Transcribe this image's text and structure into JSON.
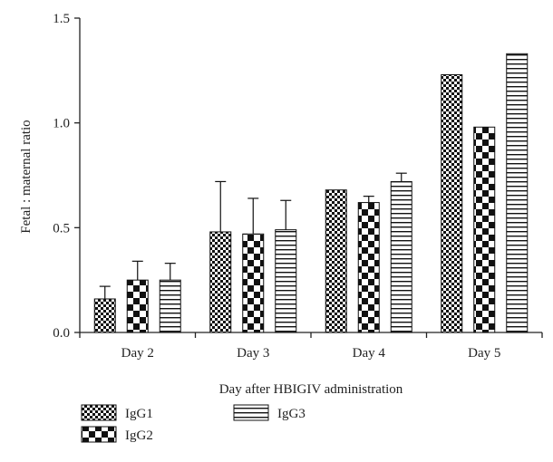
{
  "chart_data": {
    "type": "bar",
    "xlabel": "Day after HBIGIV administration",
    "ylabel": "Fetal : maternal ratio",
    "ylim": [
      0,
      1.5
    ],
    "yticks": [
      "0.0",
      "0.5",
      "1.0",
      "1.5"
    ],
    "categories": [
      "Day 2",
      "Day 3",
      "Day 4",
      "Day 5"
    ],
    "error_bars": "upper",
    "series": [
      {
        "name": "IgG1",
        "pattern": "fine-checker",
        "values": [
          0.16,
          0.48,
          0.68,
          1.23
        ],
        "errors": [
          0.06,
          0.24,
          0.0,
          0.0
        ]
      },
      {
        "name": "IgG2",
        "pattern": "coarse-checker",
        "values": [
          0.25,
          0.47,
          0.62,
          0.98
        ],
        "errors": [
          0.09,
          0.17,
          0.03,
          0.0
        ]
      },
      {
        "name": "IgG3",
        "pattern": "horizontal-lines",
        "values": [
          0.25,
          0.49,
          0.72,
          1.33
        ],
        "errors": [
          0.08,
          0.14,
          0.04,
          0.0
        ]
      }
    ],
    "legend_position": "bottom-left",
    "grid": false
  }
}
